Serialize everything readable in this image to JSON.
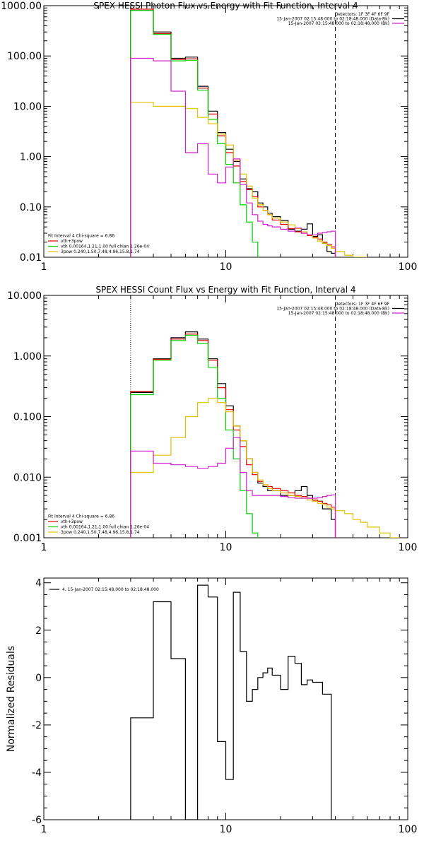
{
  "chart_data": [
    {
      "type": "line",
      "title": "SPEX HESSI Photon Flux vs Energy with Fit Function, Interval 4",
      "xscale": "log",
      "yscale": "log",
      "xlim": [
        1,
        100
      ],
      "ylim": [
        0.01,
        1000
      ],
      "xticks": [
        {
          "v": 1,
          "label": "1"
        },
        {
          "v": 10,
          "label": "10"
        },
        {
          "v": 100,
          "label": "100"
        }
      ],
      "yticks": [
        {
          "v": 1000,
          "label": "1000.00"
        },
        {
          "v": 100,
          "label": "100.00"
        },
        {
          "v": 10,
          "label": "10.00"
        },
        {
          "v": 1,
          "label": "1.00"
        },
        {
          "v": 0.1,
          "label": "0.10"
        },
        {
          "v": 0.01,
          "label": "0.01"
        }
      ],
      "vlines": [
        {
          "x": 3,
          "style": "dotted"
        },
        {
          "x": 40,
          "style": "dashed"
        }
      ],
      "legend_tr": [
        {
          "text": "Detectors: 1F 3F 4F 6F 9F",
          "color": ""
        },
        {
          "text": "15-Jan-2007 02:15:48.000 to 02:18:48.000 (Data-Bk)",
          "color": "#000000"
        },
        {
          "text": "15-Jan-2007 02:15:48.000 to 02:18:48.000 (Bk)",
          "color": "#d020d0"
        }
      ],
      "legend_bl": [
        {
          "text": "Fit Interval  4    Chi-square = 6.86",
          "color": ""
        },
        {
          "text": "vth+3pow",
          "color": "#e00000"
        },
        {
          "text": "vth 0.00164,1.21,1.00  full chian 1.26e-04",
          "color": "#00d000"
        },
        {
          "text": "3pow 0.240,1.50,7.48,4.96,15.8,1.74",
          "color": "#e0c000"
        }
      ],
      "series": [
        {
          "color": "#000000",
          "edges": [
            3,
            3.5,
            4,
            4.5,
            5,
            5.5,
            6,
            6.5,
            7,
            7.5,
            8,
            8.5,
            9,
            9.5,
            10,
            10.5,
            11,
            11.5,
            12,
            13,
            14,
            15,
            16,
            17,
            18,
            20,
            22,
            24,
            26,
            28,
            30,
            32,
            34,
            36,
            38,
            40
          ],
          "values": [
            800,
            800,
            300,
            300,
            90,
            90,
            95,
            95,
            25,
            25,
            8,
            8,
            3,
            3,
            1.4,
            1.4,
            0.8,
            0.8,
            0.36,
            0.23,
            0.2,
            0.12,
            0.1,
            0.075,
            0.064,
            0.054,
            0.036,
            0.033,
            0.036,
            0.046,
            0.026,
            0.028,
            0.019,
            0.013,
            0.012
          ]
        },
        {
          "color": "#e00000",
          "edges": [
            3,
            3.5,
            4,
            4.5,
            5,
            5.5,
            6,
            6.5,
            7,
            7.5,
            8,
            8.5,
            9,
            9.5,
            10,
            10.5,
            11,
            11.5,
            12,
            13,
            14,
            15,
            16,
            17,
            18,
            20,
            22,
            24,
            26,
            28,
            30,
            32,
            34,
            36,
            38,
            40
          ],
          "values": [
            850,
            850,
            280,
            280,
            85,
            85,
            88,
            88,
            23,
            23,
            7,
            7,
            2.6,
            2.6,
            1.2,
            1.2,
            0.65,
            0.65,
            0.32,
            0.22,
            0.16,
            0.1,
            0.085,
            0.07,
            0.055,
            0.045,
            0.037,
            0.032,
            0.03,
            0.027,
            0.025,
            0.023,
            0.02,
            0.018,
            0.016
          ]
        },
        {
          "color": "#00d000",
          "edges": [
            3,
            3.5,
            4,
            4.5,
            5,
            5.5,
            6,
            6.5,
            7,
            7.5,
            8,
            8.5,
            9,
            9.5,
            10,
            10.5,
            11,
            11.5,
            12,
            13,
            14,
            15
          ],
          "values": [
            800,
            800,
            270,
            270,
            80,
            80,
            82,
            82,
            21,
            21,
            5.5,
            5.5,
            1.8,
            1.8,
            0.7,
            0.7,
            0.3,
            0.3,
            0.11,
            0.05,
            0.02
          ]
        },
        {
          "color": "#e0c000",
          "edges": [
            3,
            3.5,
            4,
            4.5,
            5,
            5.5,
            6,
            6.5,
            7,
            7.5,
            8,
            8.5,
            9,
            9.5,
            10,
            10.5,
            11,
            11.5,
            12,
            13,
            14,
            15,
            16,
            17,
            18,
            20,
            22,
            24,
            26,
            28,
            30,
            32,
            34,
            36,
            38,
            40,
            45,
            50,
            55,
            60
          ],
          "values": [
            12,
            12,
            10,
            10,
            10,
            10,
            9,
            9,
            6,
            6,
            4.5,
            4.5,
            2.8,
            2.8,
            1.7,
            1.7,
            0.85,
            0.85,
            0.45,
            0.26,
            0.15,
            0.11,
            0.085,
            0.07,
            0.06,
            0.05,
            0.044,
            0.037,
            0.032,
            0.028,
            0.024,
            0.021,
            0.019,
            0.017,
            0.015,
            0.013,
            0.011,
            0.01,
            0.01
          ]
        },
        {
          "color": "#d020d0",
          "edges": [
            3,
            3.5,
            4,
            4.5,
            5,
            5.5,
            6,
            6.5,
            7,
            7.5,
            8,
            8.5,
            9,
            9.5,
            10,
            10.5,
            11,
            11.5,
            12,
            13,
            14,
            15,
            16,
            17,
            18,
            20,
            22,
            24,
            26,
            28,
            30,
            32,
            34,
            36,
            38,
            40
          ],
          "values": [
            90,
            90,
            80,
            80,
            20,
            20,
            1.2,
            1.2,
            1.8,
            1.8,
            0.45,
            0.45,
            0.3,
            0.3,
            0.62,
            0.62,
            0.9,
            0.9,
            0.28,
            0.12,
            0.07,
            0.052,
            0.045,
            0.042,
            0.04,
            0.036,
            0.033,
            0.038,
            0.03,
            0.028,
            0.028,
            0.03,
            0.031,
            0.032,
            0.033
          ]
        }
      ]
    },
    {
      "type": "line",
      "title": "SPEX HESSI Count Flux vs Energy with Fit Function, Interval 4",
      "xscale": "log",
      "yscale": "log",
      "xlim": [
        1,
        100
      ],
      "ylim": [
        0.001,
        10
      ],
      "xticks": [
        {
          "v": 1,
          "label": "1"
        },
        {
          "v": 10,
          "label": "10"
        },
        {
          "v": 100,
          "label": "100"
        }
      ],
      "yticks": [
        {
          "v": 10,
          "label": "10.000"
        },
        {
          "v": 1,
          "label": "1.000"
        },
        {
          "v": 0.1,
          "label": "0.100"
        },
        {
          "v": 0.01,
          "label": "0.010"
        },
        {
          "v": 0.001,
          "label": "0.001"
        }
      ],
      "vlines": [
        {
          "x": 3,
          "style": "dotted"
        },
        {
          "x": 40,
          "style": "dashed"
        }
      ],
      "legend_tr": [
        {
          "text": "Detectors: 1F 3F 4F 6F 9F",
          "color": ""
        },
        {
          "text": "15-Jan-2007 02:15:48.000 to 02:18:48.000 (Data-Bk)",
          "color": "#000000"
        },
        {
          "text": "15-Jan-2007 02:15:48.000 to 02:18:48.000 (Bk)",
          "color": "#d020d0"
        }
      ],
      "legend_bl": [
        {
          "text": "Fit Interval  4    Chi-square = 6.86",
          "color": ""
        },
        {
          "text": "vth+3pow",
          "color": "#e00000"
        },
        {
          "text": "vth 0.00164,1.21,1.00  full chian 1.26e-04",
          "color": "#00d000"
        },
        {
          "text": "3pow 0.240,1.50,7.48,4.96,15.8,1.74",
          "color": "#e0c000"
        }
      ],
      "series": [
        {
          "color": "#000000",
          "edges": [
            3,
            3.5,
            4,
            4.5,
            5,
            5.5,
            6,
            6.5,
            7,
            7.5,
            8,
            8.5,
            9,
            9.5,
            10,
            10.5,
            11,
            11.5,
            12,
            13,
            14,
            15,
            16,
            17,
            18,
            20,
            22,
            24,
            26,
            28,
            30,
            32,
            34,
            36,
            38,
            40
          ],
          "values": [
            0.25,
            0.25,
            0.9,
            0.9,
            2,
            2,
            2.5,
            2.5,
            1.9,
            1.9,
            0.9,
            0.9,
            0.35,
            0.35,
            0.15,
            0.15,
            0.07,
            0.07,
            0.04,
            0.02,
            0.012,
            0.008,
            0.007,
            0.006,
            0.006,
            0.005,
            0.005,
            0.006,
            0.007,
            0.005,
            0.004,
            0.004,
            0.003,
            0.003,
            0.002
          ]
        },
        {
          "color": "#e00000",
          "edges": [
            3,
            3.5,
            4,
            4.5,
            5,
            5.5,
            6,
            6.5,
            7,
            7.5,
            8,
            8.5,
            9,
            9.5,
            10,
            10.5,
            11,
            11.5,
            12,
            13,
            14,
            15,
            16,
            17,
            18,
            20,
            22,
            24,
            26,
            28,
            30,
            32,
            34,
            36,
            38,
            40
          ],
          "values": [
            0.26,
            0.26,
            0.88,
            0.88,
            1.9,
            1.9,
            2.3,
            2.3,
            1.8,
            1.8,
            0.85,
            0.85,
            0.3,
            0.3,
            0.13,
            0.13,
            0.06,
            0.06,
            0.032,
            0.016,
            0.011,
            0.0085,
            0.0075,
            0.007,
            0.0065,
            0.006,
            0.0055,
            0.005,
            0.0048,
            0.0045,
            0.0042,
            0.004,
            0.0037,
            0.0035,
            0.0032
          ]
        },
        {
          "color": "#00d000",
          "edges": [
            3,
            3.5,
            4,
            4.5,
            5,
            5.5,
            6,
            6.5,
            7,
            7.5,
            8,
            8.5,
            9,
            9.5,
            10,
            10.5,
            11,
            11.5,
            12,
            13,
            14,
            15
          ],
          "values": [
            0.23,
            0.23,
            0.85,
            0.85,
            1.8,
            1.8,
            2.2,
            2.2,
            1.6,
            1.6,
            0.65,
            0.65,
            0.2,
            0.2,
            0.06,
            0.06,
            0.02,
            0.02,
            0.006,
            0.0025,
            0.0012
          ]
        },
        {
          "color": "#e0c000",
          "edges": [
            3,
            3.5,
            4,
            4.5,
            5,
            5.5,
            6,
            6.5,
            7,
            7.5,
            8,
            8.5,
            9,
            9.5,
            10,
            10.5,
            11,
            11.5,
            12,
            13,
            14,
            15,
            16,
            17,
            18,
            20,
            22,
            24,
            26,
            28,
            30,
            32,
            34,
            36,
            38,
            40,
            45,
            50,
            55,
            60,
            70,
            80,
            90,
            100
          ],
          "values": [
            0.012,
            0.012,
            0.023,
            0.023,
            0.045,
            0.045,
            0.1,
            0.1,
            0.17,
            0.17,
            0.2,
            0.2,
            0.17,
            0.17,
            0.12,
            0.12,
            0.07,
            0.07,
            0.04,
            0.02,
            0.012,
            0.009,
            0.0075,
            0.0065,
            0.006,
            0.0055,
            0.005,
            0.0048,
            0.0045,
            0.0042,
            0.004,
            0.0037,
            0.0035,
            0.0032,
            0.003,
            0.0028,
            0.0025,
            0.002,
            0.0018,
            0.0015,
            0.0012,
            0.001,
            0.0009
          ]
        },
        {
          "color": "#d020d0",
          "edges": [
            3,
            3.5,
            4,
            4.5,
            5,
            5.5,
            6,
            6.5,
            7,
            7.5,
            8,
            8.5,
            9,
            9.5,
            10,
            10.5,
            11,
            11.5,
            12,
            13,
            14,
            15,
            16,
            17,
            18,
            20,
            22,
            24,
            26,
            28,
            30,
            32,
            34,
            36,
            38,
            40
          ],
          "values": [
            0.027,
            0.027,
            0.017,
            0.017,
            0.016,
            0.016,
            0.015,
            0.015,
            0.014,
            0.014,
            0.015,
            0.015,
            0.017,
            0.017,
            0.03,
            0.03,
            0.045,
            0.045,
            0.012,
            0.006,
            0.005,
            0.005,
            0.005,
            0.005,
            0.005,
            0.0048,
            0.0046,
            0.0045,
            0.0045,
            0.0045,
            0.0045,
            0.0046,
            0.0048,
            0.005,
            0.0051
          ]
        }
      ]
    },
    {
      "type": "line",
      "title": "",
      "ylabel": "Normalized Residuals",
      "xscale": "log",
      "yscale": "linear",
      "xlim": [
        1,
        100
      ],
      "ylim": [
        -6,
        4.2
      ],
      "xticks": [
        {
          "v": 1,
          "label": "1"
        },
        {
          "v": 10,
          "label": "10"
        },
        {
          "v": 100,
          "label": "100"
        }
      ],
      "yticks": [
        {
          "v": 4,
          "label": "4"
        },
        {
          "v": 2,
          "label": "2"
        },
        {
          "v": 0,
          "label": "0"
        },
        {
          "v": -2,
          "label": "-2"
        },
        {
          "v": -4,
          "label": "-4"
        },
        {
          "v": -6,
          "label": "-6"
        }
      ],
      "vlines": [],
      "legend_tl": [
        {
          "text": "4. 15-Jan-2007 02:15:48.000 to 02:18:48.000",
          "color": "#000000"
        }
      ],
      "series": [
        {
          "color": "#000000",
          "edges": [
            3,
            4,
            5,
            6,
            7,
            8,
            9,
            10,
            11,
            12,
            13,
            14,
            15,
            16,
            17,
            18,
            20,
            22,
            24,
            26,
            28,
            30,
            32,
            34,
            36,
            38,
            40
          ],
          "values": [
            -1.7,
            3.2,
            0.8,
            -6,
            3.9,
            3.4,
            -2.7,
            -4.3,
            3.6,
            1.1,
            -1.0,
            -0.5,
            0,
            0.2,
            0.4,
            0.1,
            -0.5,
            0.9,
            0.6,
            -0.3,
            -0.1,
            -0.2,
            -0.2,
            -0.7,
            -0.7,
            -6
          ]
        }
      ]
    }
  ]
}
